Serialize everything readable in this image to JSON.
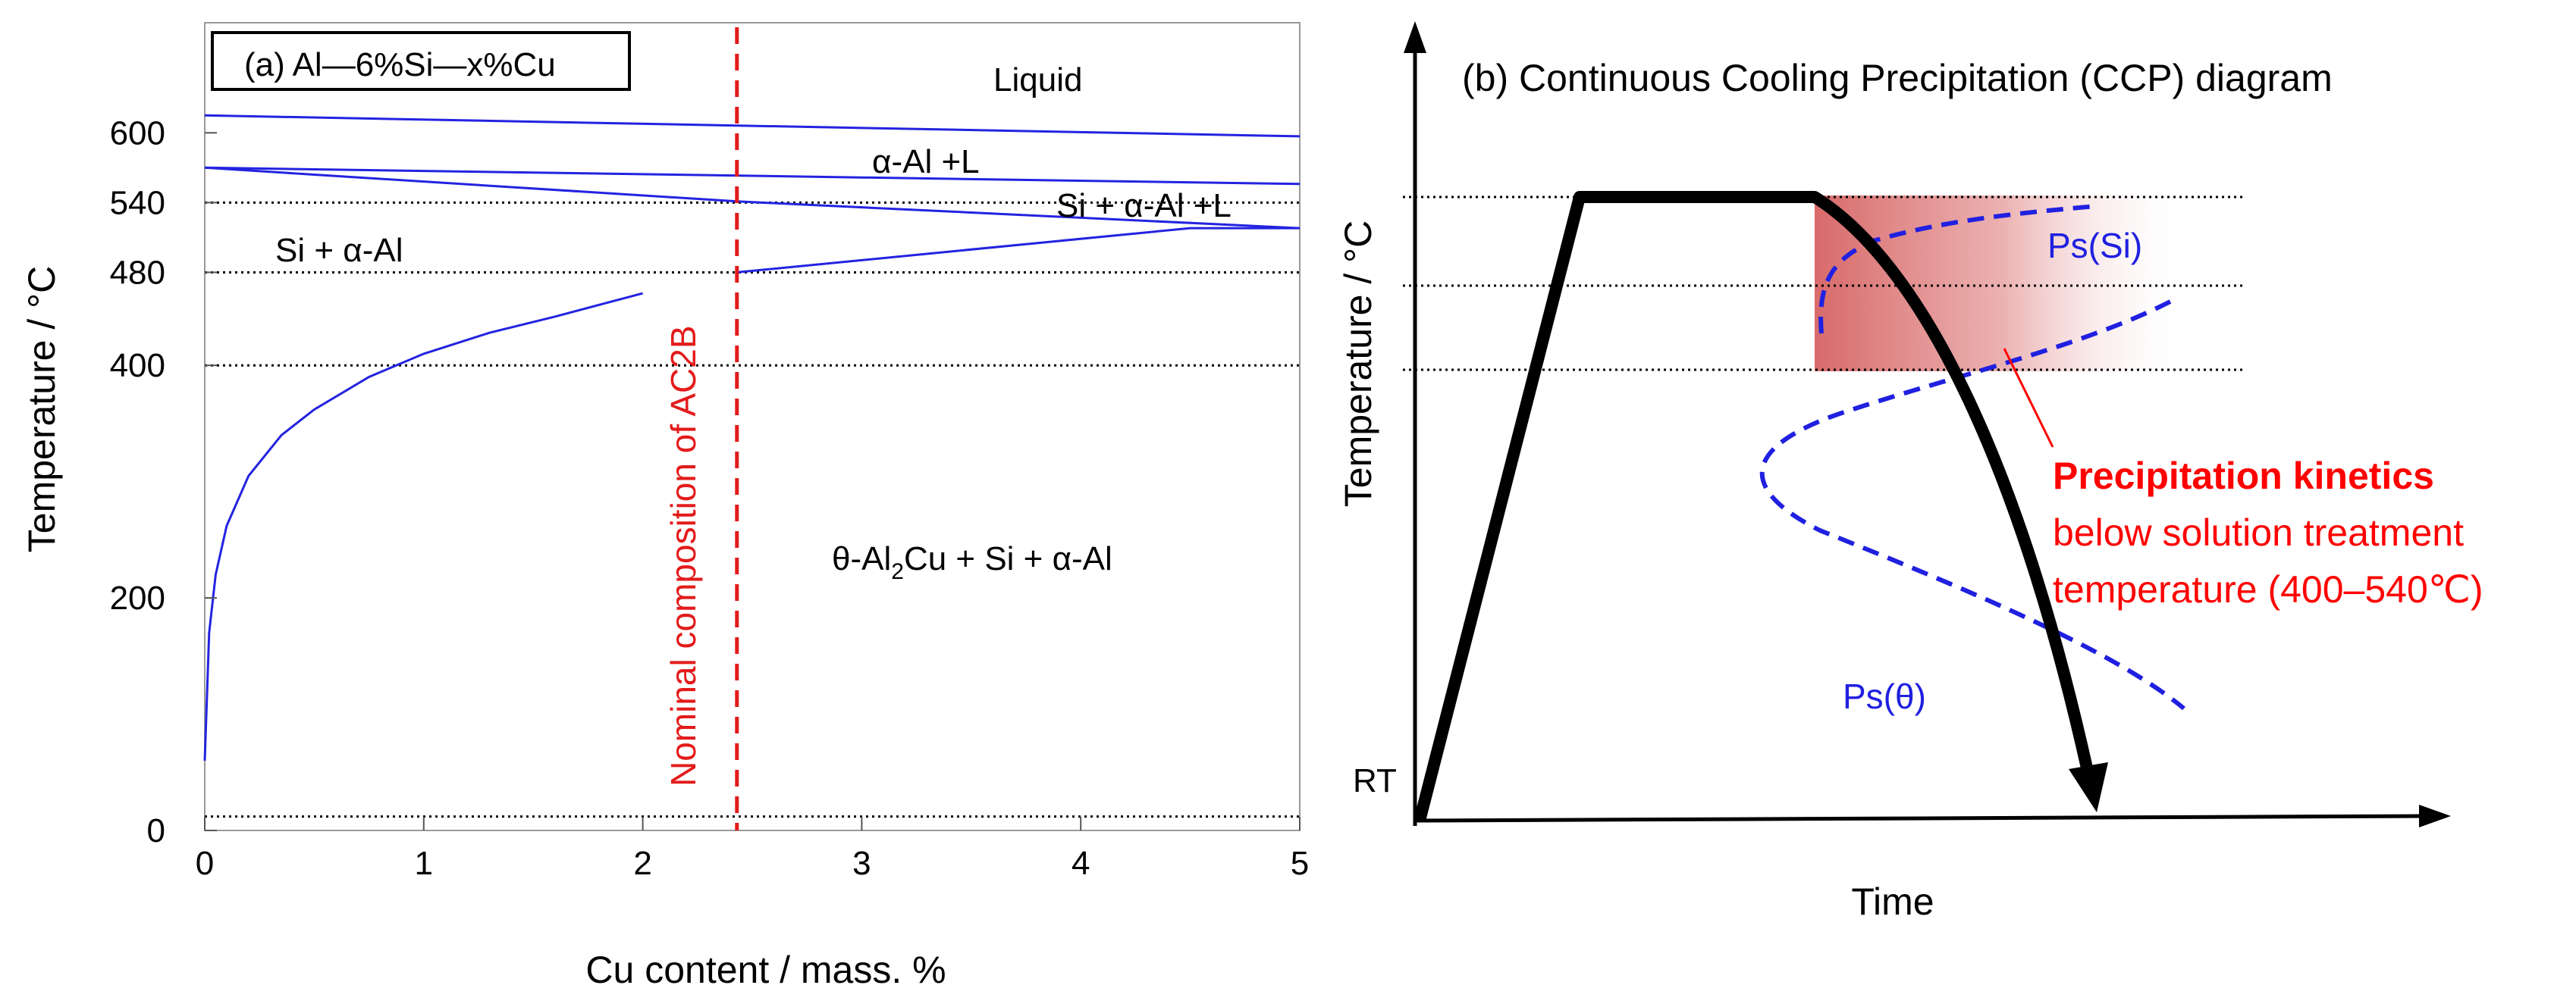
{
  "chart_data": [
    {
      "panel": "a",
      "type": "line",
      "title": "(a) Al—6%Si—x%Cu",
      "xlabel": "Cu content / mass. %",
      "ylabel": "Temperature / °C",
      "xlim": [
        0,
        5
      ],
      "ylim": [
        -5,
        720
      ],
      "xticks": [
        0,
        1,
        2,
        3,
        4,
        5
      ],
      "yticks": [
        0,
        200,
        400,
        480,
        540,
        600
      ],
      "ytick_labels": [
        "0",
        "200",
        "400",
        "480",
        "540",
        "600"
      ],
      "reference_lines_y": [
        400,
        480,
        540,
        12
      ],
      "composition_line": {
        "x": 2.43,
        "label": "Nominal composition of AC2B",
        "color": "#e31b1b"
      },
      "boundaries": [
        {
          "name": "liquidus",
          "x": [
            0,
            5
          ],
          "y": [
            615,
            597
          ]
        },
        {
          "name": "upper-eutectic-line",
          "x": [
            0,
            5
          ],
          "y": [
            570,
            556
          ]
        },
        {
          "name": "alpha-al-solidus",
          "x": [
            0,
            2.43,
            5
          ],
          "y": [
            570,
            541,
            518
          ]
        },
        {
          "name": "ternary-line",
          "x": [
            2.43,
            4.5,
            5
          ],
          "y": [
            480,
            518,
            518
          ]
        },
        {
          "name": "cu-solvus",
          "x": [
            0,
            0.02,
            0.05,
            0.1,
            0.2,
            0.35,
            0.5,
            0.75,
            1.0,
            1.3,
            1.6,
            2.0
          ],
          "y": [
            60,
            170,
            220,
            262,
            305,
            340,
            362,
            390,
            410,
            428,
            442,
            462
          ]
        }
      ],
      "regions": {
        "liquid": "Liquid",
        "alpha_l": "α-Al +L",
        "si_alpha_l": "Si + α-Al +L",
        "si_alpha": "Si + α-Al",
        "theta_prefix": "θ-Al",
        "theta_sub": "2",
        "theta_suffix": "Cu + Si + α-Al"
      },
      "colors": {
        "boundary": "#2323e0",
        "axis": "#000000"
      }
    },
    {
      "panel": "b",
      "type": "line",
      "title": "(b) Continuous Cooling Precipitation (CCP) diagram",
      "xlabel": "Time",
      "ylabel": "Temperature / °C",
      "rt_label": "RT",
      "annotation": {
        "heading": "Precipitation kinetics",
        "line1": "below solution treatment",
        "line2": "temperature (400–540℃)"
      },
      "curve_labels": {
        "si": "Ps(Si)",
        "theta": "Ps(θ)"
      },
      "shaded_band_temperature_range_c": [
        400,
        540
      ],
      "colors": {
        "cooling_path": "#000000",
        "ps_curves": "#2020e0",
        "annotation": "#ff0000",
        "shade": "#d86a6a"
      }
    }
  ]
}
